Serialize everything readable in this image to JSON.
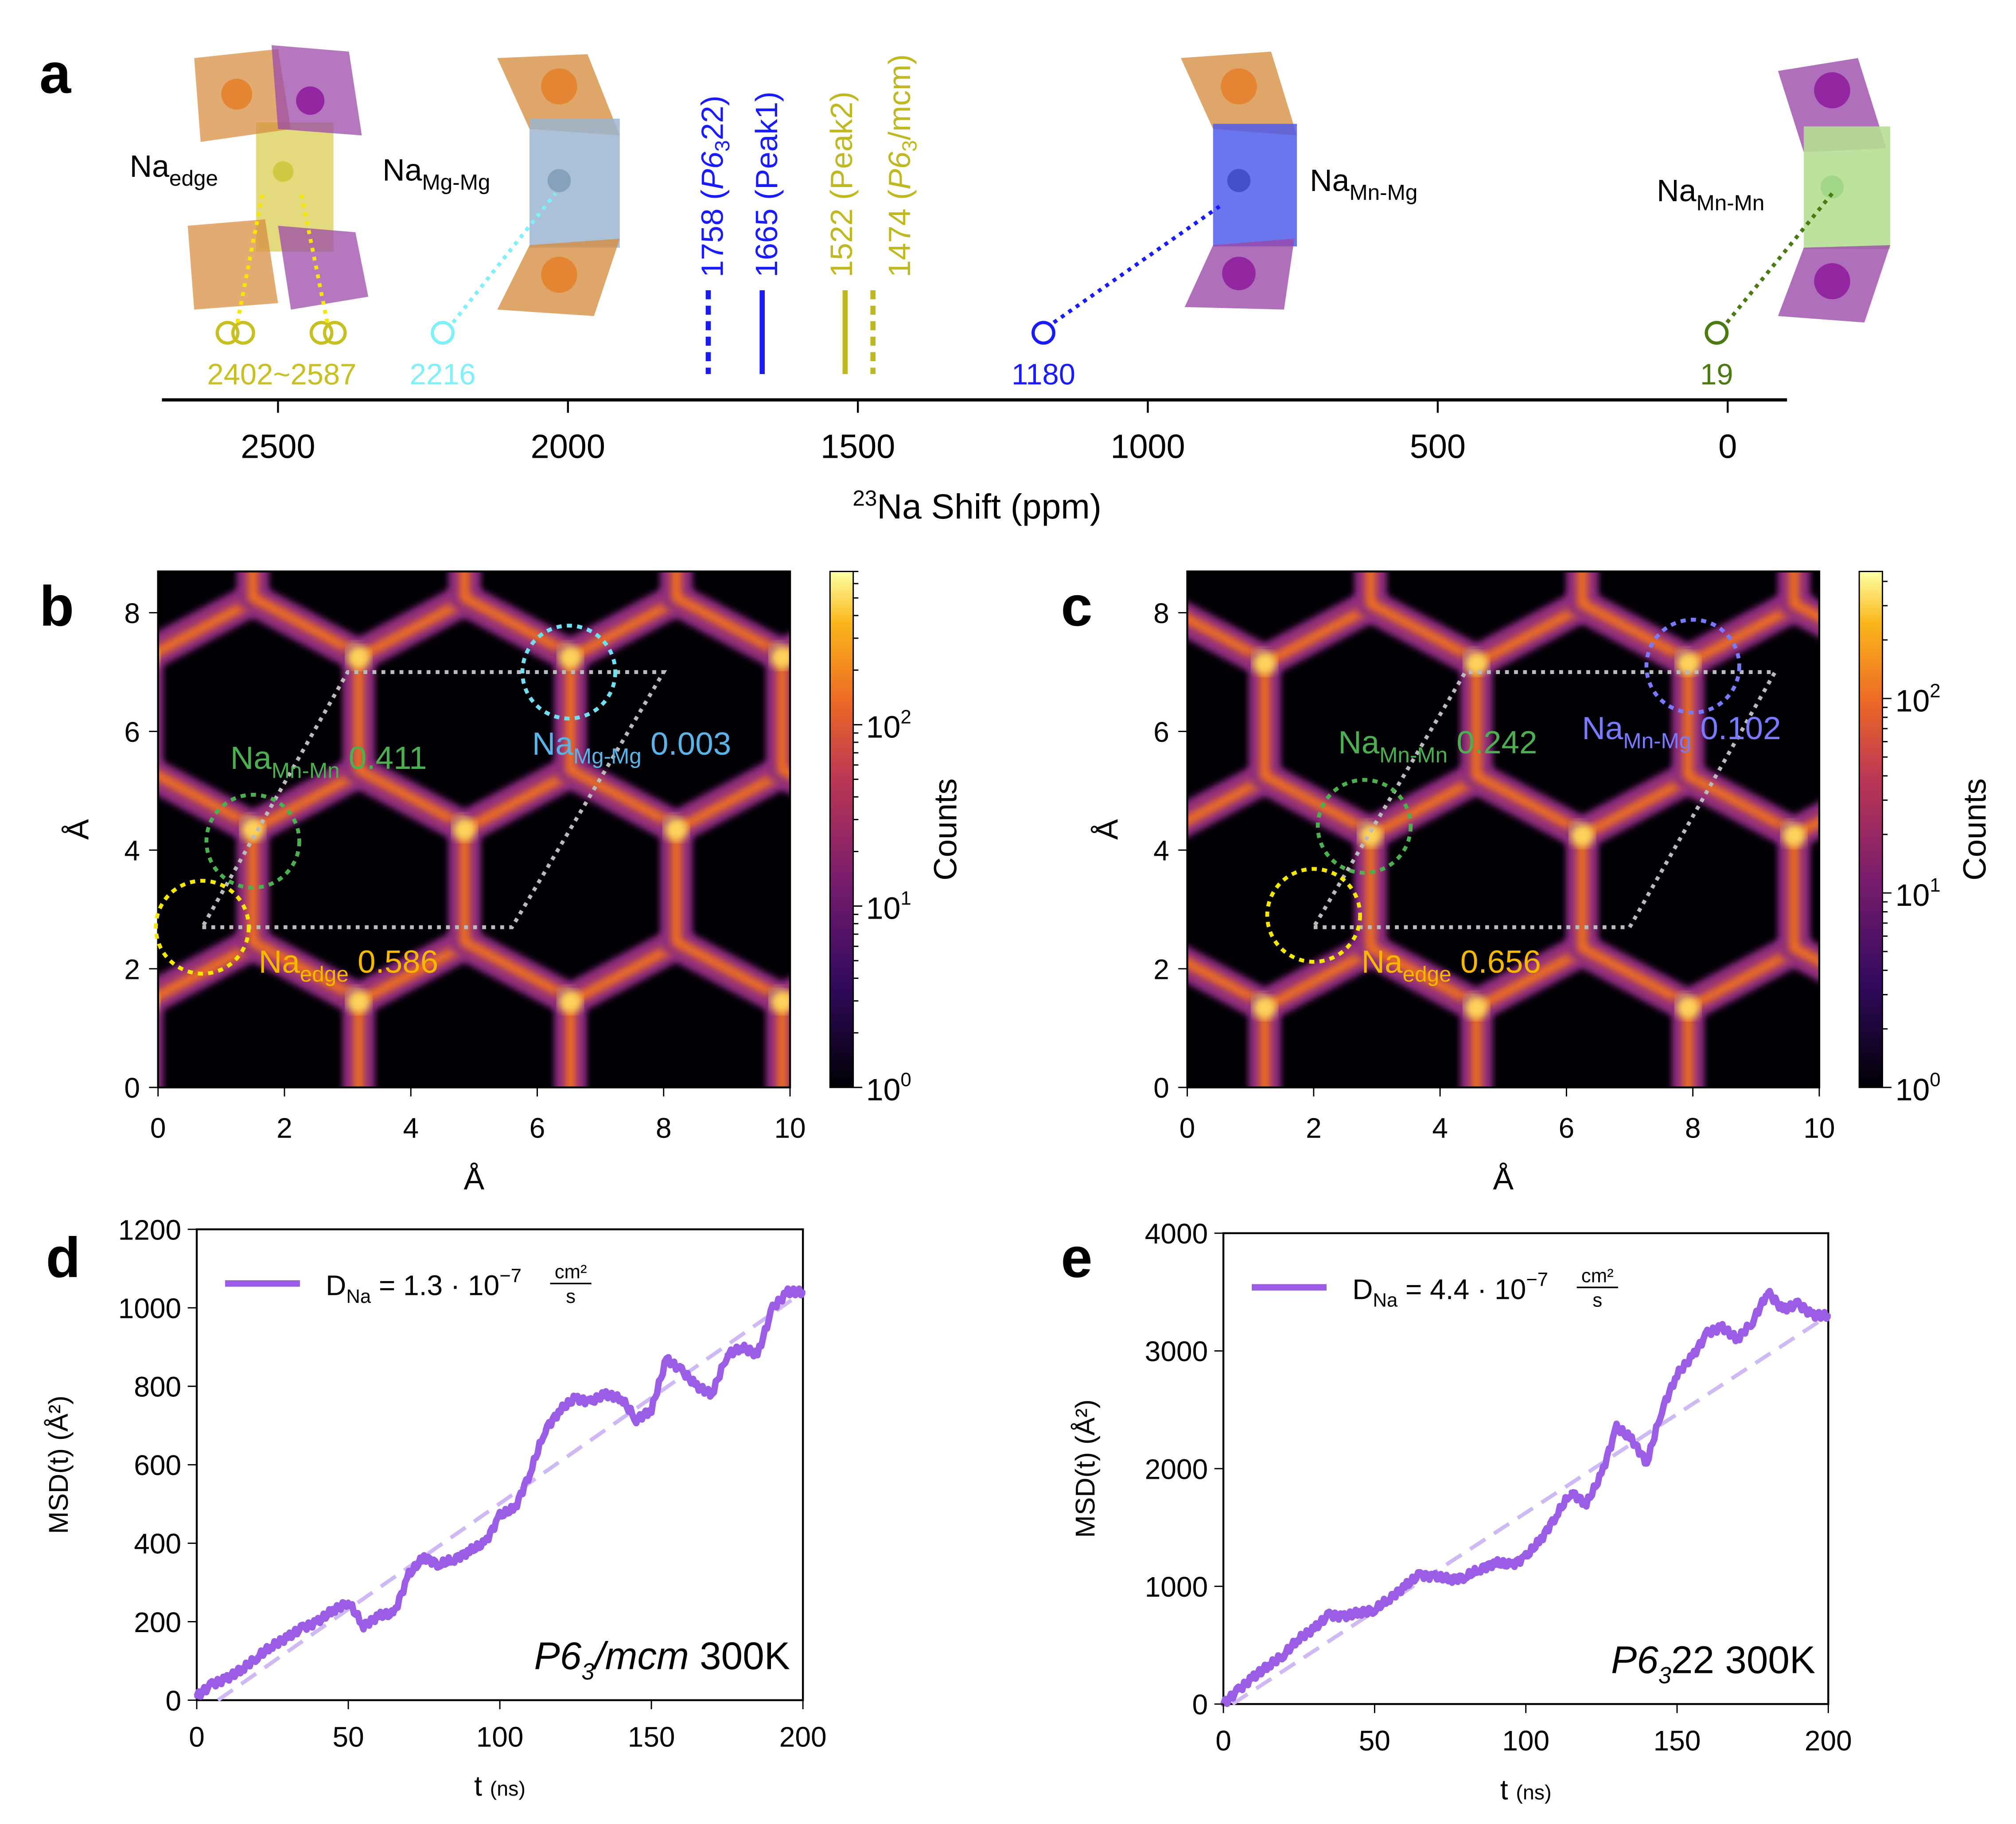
{
  "panel_labels": [
    "a",
    "b",
    "c",
    "d",
    "e"
  ],
  "panel_a": {
    "xlabel_sup": "23",
    "xlabel": "Na Shift (ppm)",
    "xticks": [
      2500,
      2000,
      1500,
      1000,
      500,
      0
    ],
    "xlim": [
      2700,
      -100
    ],
    "sites": [
      {
        "name": "Na",
        "sub": "edge",
        "value": "2402~2587",
        "ppm": [
          2587,
          2560,
          2425,
          2402
        ],
        "color": "#c8c020"
      },
      {
        "name": "Na",
        "sub": "Mg-Mg",
        "value": "2216",
        "ppm": [
          2216
        ],
        "color": "#80f0f8"
      },
      {
        "name": "Na",
        "sub": "Mn-Mg",
        "value": "1180",
        "ppm": [
          1180
        ],
        "color": "#1a1aff"
      },
      {
        "name": "Na",
        "sub": "Mn-Mn",
        "value": "19",
        "ppm": [
          19
        ],
        "color": "#4a7a10"
      }
    ],
    "peaks": [
      {
        "ppm": 1758,
        "num": "1758 (",
        "it": "P6",
        "sub": "3",
        "rest": "22)",
        "style": "dashed",
        "color": "#1a1aff"
      },
      {
        "ppm": 1665,
        "num": "1665 (Peak1)",
        "it": "",
        "sub": "",
        "rest": "",
        "style": "solid",
        "color": "#1a1aff"
      },
      {
        "ppm": 1522,
        "num": "1522 (Peak2)",
        "it": "",
        "sub": "",
        "rest": "",
        "style": "solid",
        "color": "#c0b820"
      },
      {
        "ppm": 1474,
        "num": "1474 (",
        "it": "P6",
        "sub": "3",
        "rest": "/mcm)",
        "style": "dashed",
        "color": "#c0b820"
      }
    ]
  },
  "chart_data": [
    {
      "panel": "b",
      "type": "heatmap",
      "xlabel": "Å",
      "ylabel": "Å",
      "xlim": [
        0,
        10
      ],
      "ylim": [
        0,
        8.7
      ],
      "xticks": [
        "0",
        "2",
        "4",
        "6",
        "8",
        "10"
      ],
      "yticks": [
        "0",
        "2",
        "4",
        "6",
        "8"
      ],
      "colorbar": {
        "label": "Counts",
        "scale": "log",
        "range": [
          1,
          700
        ],
        "tick_exponents": [
          "0",
          "1",
          "2"
        ],
        "colormap": "inferno"
      },
      "annotations": [
        {
          "name": "Na",
          "sub": "Mn-Mn",
          "value": "0.411",
          "color": "#4caf50"
        },
        {
          "name": "Na",
          "sub": "Mg-Mg",
          "value": "0.003",
          "color": "#5ab4e8"
        },
        {
          "name": "Na",
          "sub": "edge",
          "value": "0.586",
          "color": "#f5b800"
        }
      ],
      "circles": [
        {
          "x": 0.7,
          "y": 2.7,
          "color": "#f5e800"
        },
        {
          "x": 1.5,
          "y": 4.15,
          "color": "#4caf50"
        },
        {
          "x": 6.5,
          "y": 7.0,
          "color": "#70e0f0"
        }
      ],
      "cell": [
        [
          0.7,
          2.7
        ],
        [
          5.6,
          2.7
        ],
        [
          8.0,
          7.0
        ],
        [
          3.0,
          7.0
        ]
      ]
    },
    {
      "panel": "c",
      "type": "heatmap",
      "xlabel": "Å",
      "ylabel": "Å",
      "xlim": [
        0,
        10
      ],
      "ylim": [
        0,
        8.7
      ],
      "xticks": [
        "0",
        "2",
        "4",
        "6",
        "8",
        "10"
      ],
      "yticks": [
        "0",
        "2",
        "4",
        "6",
        "8"
      ],
      "colorbar": {
        "label": "Counts",
        "scale": "log",
        "range": [
          1,
          450
        ],
        "tick_exponents": [
          "0",
          "1",
          "2"
        ],
        "colormap": "inferno"
      },
      "annotations": [
        {
          "name": "Na",
          "sub": "Mn-Mn",
          "value": "0.242",
          "color": "#4caf50"
        },
        {
          "name": "Na",
          "sub": "Mn-Mg",
          "value": "0.102",
          "color": "#7a7aff"
        },
        {
          "name": "Na",
          "sub": "edge",
          "value": "0.656",
          "color": "#f5b800"
        }
      ],
      "circles": [
        {
          "x": 2.0,
          "y": 2.9,
          "color": "#f5e800"
        },
        {
          "x": 2.8,
          "y": 4.4,
          "color": "#4caf50"
        },
        {
          "x": 8.0,
          "y": 7.1,
          "color": "#7a7aff"
        }
      ],
      "cell": [
        [
          2.0,
          2.7
        ],
        [
          7.0,
          2.7
        ],
        [
          9.3,
          7.0
        ],
        [
          4.4,
          7.0
        ]
      ]
    },
    {
      "panel": "d",
      "type": "line",
      "xlabel": "t",
      "xlabel_unit": "(ns)",
      "ylabel": "MSD(t) (Å²)",
      "xlim": [
        0,
        200
      ],
      "ylim": [
        0,
        1200
      ],
      "xticks": [
        "0",
        "50",
        "100",
        "150",
        "200"
      ],
      "yticks": [
        "0",
        "200",
        "400",
        "600",
        "800",
        "1000",
        "1200"
      ],
      "legend": {
        "pre": "D",
        "sub": "Na",
        "eq": " = 1.3 · 10",
        "exp": "−7",
        "num": "cm²",
        "den": "s"
      },
      "annotation": {
        "it": "P6",
        "sub": "3",
        "it2": "/mcm",
        "rest": " 300K"
      },
      "color": "#9b5de5",
      "series": {
        "t": [
          0,
          5,
          10,
          15,
          20,
          25,
          30,
          35,
          40,
          45,
          50,
          55,
          60,
          65,
          70,
          75,
          80,
          85,
          90,
          95,
          100,
          105,
          110,
          115,
          120,
          125,
          130,
          135,
          140,
          145,
          150,
          155,
          160,
          165,
          170,
          175,
          180,
          185,
          190,
          195,
          200
        ],
        "msd": [
          10,
          40,
          55,
          80,
          110,
          140,
          160,
          185,
          200,
          230,
          250,
          190,
          215,
          220,
          320,
          365,
          345,
          360,
          380,
          400,
          470,
          490,
          580,
          690,
          740,
          770,
          760,
          780,
          770,
          715,
          740,
          870,
          840,
          800,
          780,
          880,
          900,
          880,
          1000,
          1040,
          1040
        ]
      },
      "fit": {
        "t": [
          7,
          200
        ],
        "msd": [
          0,
          1040
        ]
      }
    },
    {
      "panel": "e",
      "type": "line",
      "xlabel": "t",
      "xlabel_unit": "(ns)",
      "ylabel": "MSD(t) (Å²)",
      "xlim": [
        0,
        200
      ],
      "ylim": [
        0,
        4000
      ],
      "xticks": [
        "0",
        "50",
        "100",
        "150",
        "200"
      ],
      "yticks": [
        "0",
        "1000",
        "2000",
        "3000",
        "4000"
      ],
      "legend": {
        "pre": "D",
        "sub": "Na",
        "eq": " = 4.4 · 10",
        "exp": "−7",
        "num": "cm²",
        "den": "s"
      },
      "annotation": {
        "it": "P6",
        "sub": "3",
        "it2": "",
        "rest": "22 300K"
      },
      "color": "#9b5de5",
      "series": {
        "t": [
          0,
          5,
          10,
          15,
          20,
          25,
          30,
          35,
          40,
          45,
          50,
          55,
          60,
          65,
          70,
          75,
          80,
          85,
          90,
          95,
          100,
          105,
          110,
          115,
          120,
          125,
          130,
          135,
          140,
          145,
          150,
          155,
          160,
          165,
          170,
          175,
          180,
          185,
          190,
          195,
          200
        ],
        "msd": [
          0,
          120,
          230,
          330,
          420,
          560,
          640,
          760,
          740,
          780,
          800,
          900,
          1000,
          1100,
          1080,
          1060,
          1080,
          1150,
          1200,
          1180,
          1250,
          1400,
          1600,
          1800,
          1700,
          1950,
          2350,
          2250,
          2050,
          2500,
          2800,
          2950,
          3150,
          3200,
          3100,
          3250,
          3500,
          3350,
          3400,
          3300,
          3300
        ]
      },
      "fit": {
        "t": [
          3,
          200
        ],
        "msd": [
          0,
          3300
        ]
      }
    }
  ]
}
